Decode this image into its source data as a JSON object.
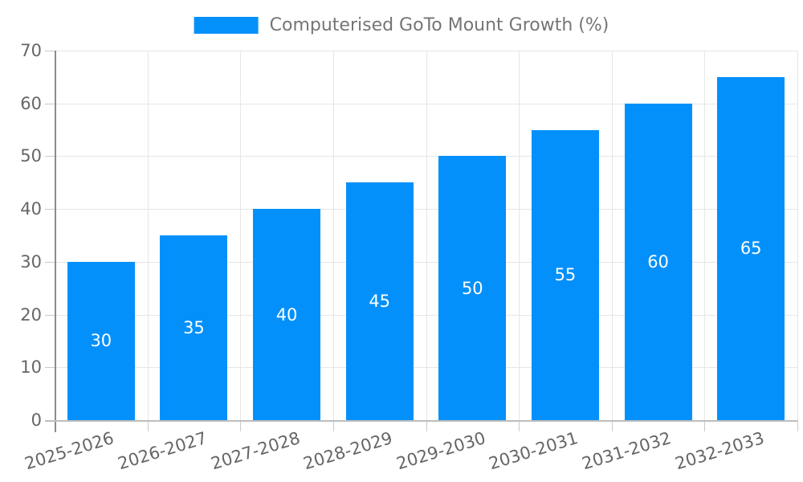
{
  "legend": {
    "label": "Computerised GoTo Mount Growth (%)"
  },
  "chart_data": {
    "type": "bar",
    "title": "Computerised GoTo Mount Growth (%)",
    "categories": [
      "2025-2026",
      "2026-2027",
      "2027-2028",
      "2028-2029",
      "2029-2030",
      "2030-2031",
      "2031-2032",
      "2032-2033"
    ],
    "values": [
      30,
      35,
      40,
      45,
      50,
      55,
      60,
      65
    ],
    "series": [
      {
        "name": "Computerised GoTo Mount Growth (%)",
        "values": [
          30,
          35,
          40,
          45,
          50,
          55,
          60,
          65
        ]
      }
    ],
    "xlabel": "",
    "ylabel": "",
    "ylim": [
      0,
      70
    ],
    "yticks": [
      0,
      10,
      20,
      30,
      40,
      50,
      60,
      70
    ],
    "grid": true,
    "legend_position": "top-center",
    "value_label_position": "inside-center",
    "x_label_rotation_deg": -17,
    "colors": {
      "bar": "#0490fa",
      "grid": "#e6e6e6",
      "tick": "#c9c9c9",
      "axis_y": "#8c8c8c",
      "axis_x": "#bdbdbd",
      "tick_text": "#666666",
      "legend_text": "#757575",
      "value_text": "#ffffff",
      "background": "#ffffff"
    }
  }
}
